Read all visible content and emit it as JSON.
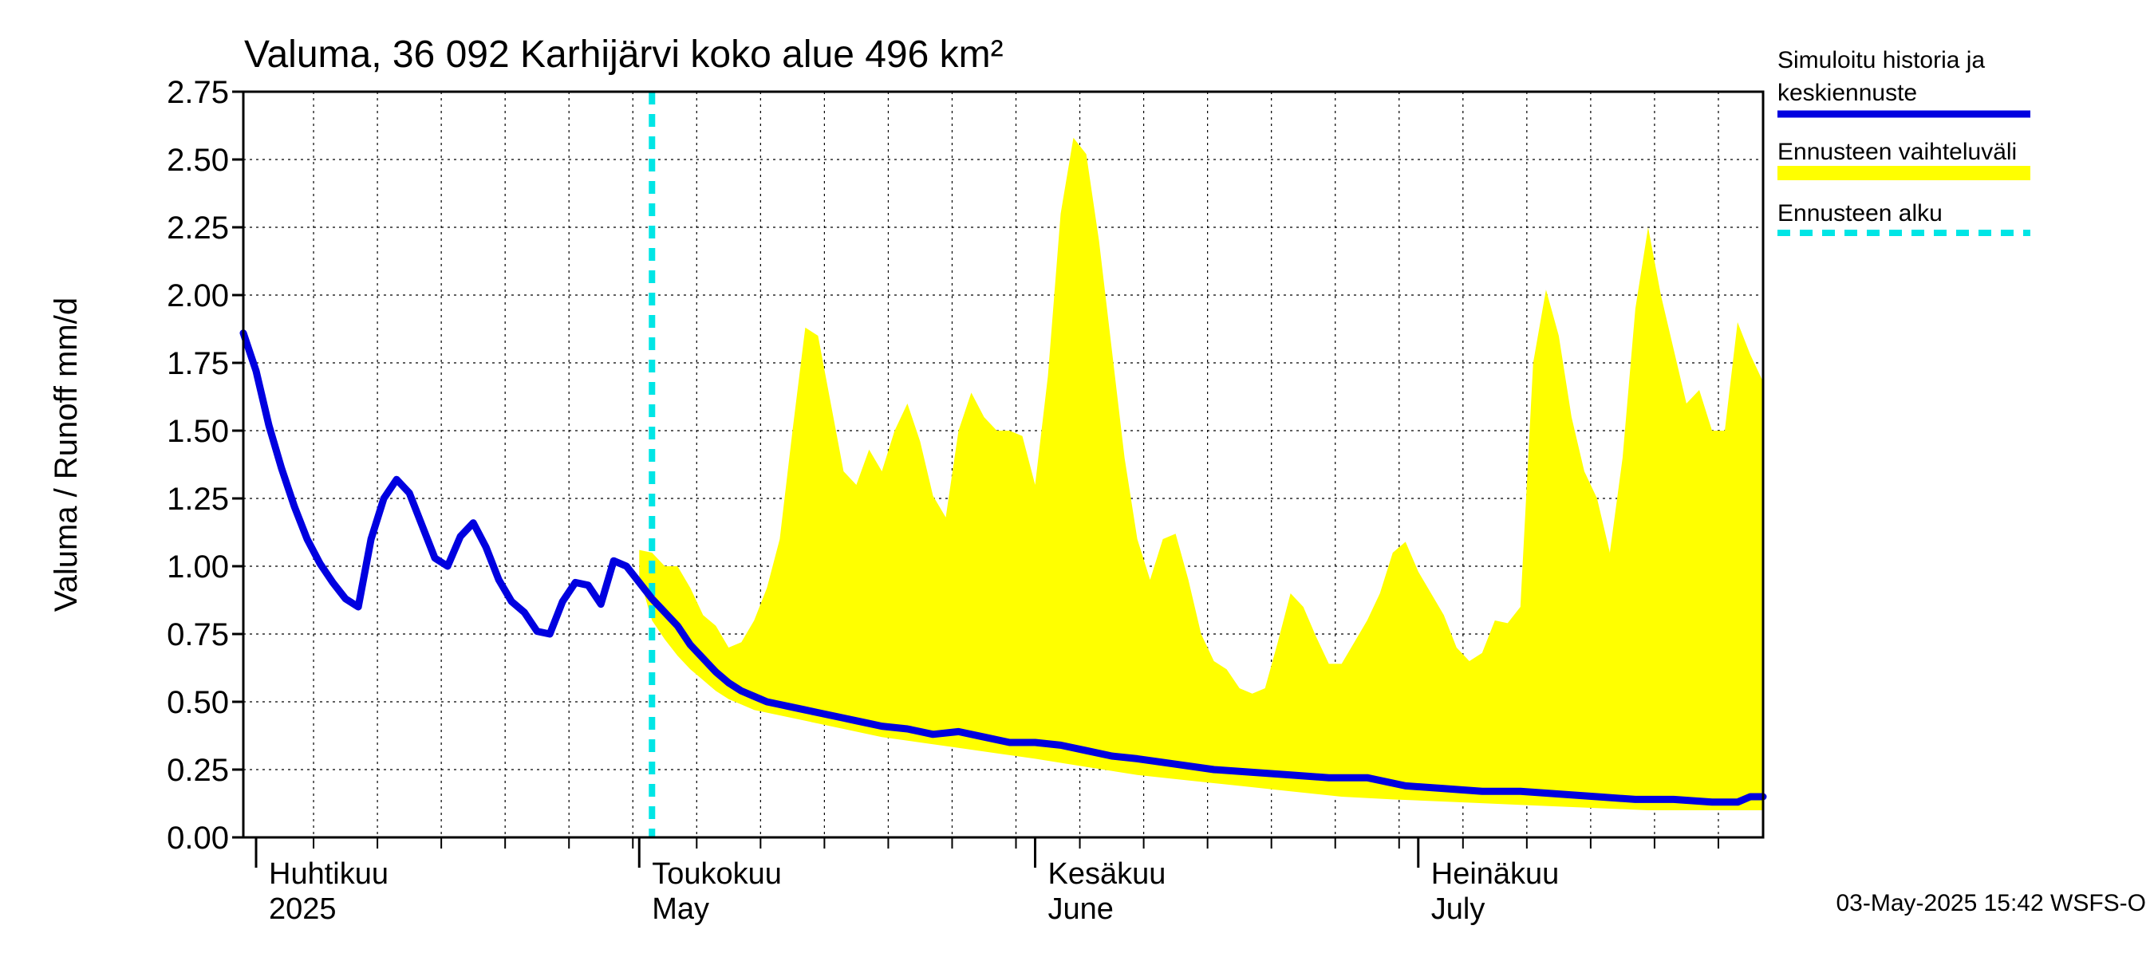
{
  "chart_data": {
    "type": "line",
    "title": "Valuma, 36 092 Karhijärvi koko alue 496 km²",
    "ylabel": "Valuma / Runoff     mm/d",
    "xlabel": "",
    "ylim": [
      0,
      2.75
    ],
    "yticks": [
      "0.00",
      "0.25",
      "0.50",
      "0.75",
      "1.00",
      "1.25",
      "1.50",
      "1.75",
      "2.00",
      "2.25",
      "2.50",
      "2.75"
    ],
    "x_range": [
      "2025-03-31",
      "2025-07-28"
    ],
    "grid": true,
    "legend_placement": "right",
    "forecast_start": "2025-05-02",
    "months": [
      {
        "date": "2025-04-01",
        "label": "Huhtikuu",
        "sublabel": "2025"
      },
      {
        "date": "2025-05-01",
        "label": "Toukokuu",
        "sublabel": "May"
      },
      {
        "date": "2025-06-01",
        "label": "Kesäkuu",
        "sublabel": "June"
      },
      {
        "date": "2025-07-01",
        "label": "Heinäkuu",
        "sublabel": "July"
      }
    ],
    "legend": [
      {
        "line1": "Simuloitu historia ja",
        "line2": "keskiennuste",
        "color": "#0000e0",
        "style": "solid"
      },
      {
        "line1": "Ennusteen vaihteluväli",
        "line2": "",
        "color": "#ffff00",
        "style": "band"
      },
      {
        "line1": "Ennusteen alku",
        "line2": "",
        "color": "#00e5e5",
        "style": "dashed"
      }
    ],
    "timestamp": "03-May-2025 15:42 WSFS-O",
    "series": [
      {
        "role": "simulated",
        "color": "#0000e0",
        "points": [
          [
            "2025-03-31",
            1.86
          ],
          [
            "2025-04-01",
            1.72
          ],
          [
            "2025-04-02",
            1.52
          ],
          [
            "2025-04-03",
            1.36
          ],
          [
            "2025-04-04",
            1.22
          ],
          [
            "2025-04-05",
            1.1
          ],
          [
            "2025-04-06",
            1.01
          ],
          [
            "2025-04-07",
            0.94
          ],
          [
            "2025-04-08",
            0.88
          ],
          [
            "2025-04-09",
            0.85
          ],
          [
            "2025-04-10",
            1.1
          ],
          [
            "2025-04-11",
            1.25
          ],
          [
            "2025-04-12",
            1.32
          ],
          [
            "2025-04-13",
            1.27
          ],
          [
            "2025-04-14",
            1.15
          ],
          [
            "2025-04-15",
            1.03
          ],
          [
            "2025-04-16",
            1.0
          ],
          [
            "2025-04-17",
            1.11
          ],
          [
            "2025-04-18",
            1.16
          ],
          [
            "2025-04-19",
            1.07
          ],
          [
            "2025-04-20",
            0.95
          ],
          [
            "2025-04-21",
            0.87
          ],
          [
            "2025-04-22",
            0.83
          ],
          [
            "2025-04-23",
            0.76
          ],
          [
            "2025-04-24",
            0.75
          ],
          [
            "2025-04-25",
            0.87
          ],
          [
            "2025-04-26",
            0.94
          ],
          [
            "2025-04-27",
            0.93
          ],
          [
            "2025-04-28",
            0.86
          ],
          [
            "2025-04-29",
            1.02
          ],
          [
            "2025-04-30",
            1.0
          ],
          [
            "2025-05-01",
            0.94
          ],
          [
            "2025-05-02",
            0.88
          ],
          [
            "2025-05-03",
            0.83
          ],
          [
            "2025-05-04",
            0.78
          ],
          [
            "2025-05-05",
            0.71
          ],
          [
            "2025-05-06",
            0.66
          ],
          [
            "2025-05-07",
            0.61
          ],
          [
            "2025-05-08",
            0.57
          ],
          [
            "2025-05-09",
            0.54
          ],
          [
            "2025-05-10",
            0.52
          ],
          [
            "2025-05-11",
            0.5
          ],
          [
            "2025-05-12",
            0.49
          ],
          [
            "2025-05-13",
            0.48
          ],
          [
            "2025-05-14",
            0.47
          ],
          [
            "2025-05-15",
            0.46
          ],
          [
            "2025-05-16",
            0.45
          ],
          [
            "2025-05-17",
            0.44
          ],
          [
            "2025-05-18",
            0.43
          ],
          [
            "2025-05-19",
            0.42
          ],
          [
            "2025-05-20",
            0.41
          ],
          [
            "2025-05-22",
            0.4
          ],
          [
            "2025-05-24",
            0.38
          ],
          [
            "2025-05-26",
            0.39
          ],
          [
            "2025-05-28",
            0.37
          ],
          [
            "2025-05-30",
            0.35
          ],
          [
            "2025-06-01",
            0.35
          ],
          [
            "2025-06-03",
            0.34
          ],
          [
            "2025-06-05",
            0.32
          ],
          [
            "2025-06-07",
            0.3
          ],
          [
            "2025-06-09",
            0.29
          ],
          [
            "2025-06-12",
            0.27
          ],
          [
            "2025-06-15",
            0.25
          ],
          [
            "2025-06-18",
            0.24
          ],
          [
            "2025-06-21",
            0.23
          ],
          [
            "2025-06-24",
            0.22
          ],
          [
            "2025-06-27",
            0.22
          ],
          [
            "2025-06-30",
            0.19
          ],
          [
            "2025-07-03",
            0.18
          ],
          [
            "2025-07-06",
            0.17
          ],
          [
            "2025-07-09",
            0.17
          ],
          [
            "2025-07-12",
            0.16
          ],
          [
            "2025-07-15",
            0.15
          ],
          [
            "2025-07-18",
            0.14
          ],
          [
            "2025-07-21",
            0.14
          ],
          [
            "2025-07-24",
            0.13
          ],
          [
            "2025-07-26",
            0.13
          ],
          [
            "2025-07-27",
            0.15
          ],
          [
            "2025-07-28",
            0.15
          ]
        ]
      }
    ],
    "band": {
      "color": "#ffff00",
      "upper": [
        [
          "2025-05-01",
          1.06
        ],
        [
          "2025-05-02",
          1.05
        ],
        [
          "2025-05-03",
          1.0
        ],
        [
          "2025-05-04",
          1.0
        ],
        [
          "2025-05-05",
          0.92
        ],
        [
          "2025-05-06",
          0.82
        ],
        [
          "2025-05-07",
          0.78
        ],
        [
          "2025-05-08",
          0.7
        ],
        [
          "2025-05-09",
          0.72
        ],
        [
          "2025-05-10",
          0.8
        ],
        [
          "2025-05-11",
          0.92
        ],
        [
          "2025-05-12",
          1.1
        ],
        [
          "2025-05-13",
          1.5
        ],
        [
          "2025-05-14",
          1.88
        ],
        [
          "2025-05-15",
          1.85
        ],
        [
          "2025-05-16",
          1.6
        ],
        [
          "2025-05-17",
          1.35
        ],
        [
          "2025-05-18",
          1.3
        ],
        [
          "2025-05-19",
          1.43
        ],
        [
          "2025-05-20",
          1.35
        ],
        [
          "2025-05-21",
          1.5
        ],
        [
          "2025-05-22",
          1.6
        ],
        [
          "2025-05-23",
          1.46
        ],
        [
          "2025-05-24",
          1.26
        ],
        [
          "2025-05-25",
          1.18
        ],
        [
          "2025-05-26",
          1.5
        ],
        [
          "2025-05-27",
          1.64
        ],
        [
          "2025-05-28",
          1.55
        ],
        [
          "2025-05-29",
          1.5
        ],
        [
          "2025-05-30",
          1.5
        ],
        [
          "2025-05-31",
          1.48
        ],
        [
          "2025-06-01",
          1.3
        ],
        [
          "2025-06-02",
          1.7
        ],
        [
          "2025-06-03",
          2.3
        ],
        [
          "2025-06-04",
          2.58
        ],
        [
          "2025-06-05",
          2.52
        ],
        [
          "2025-06-06",
          2.2
        ],
        [
          "2025-06-07",
          1.8
        ],
        [
          "2025-06-08",
          1.4
        ],
        [
          "2025-06-09",
          1.1
        ],
        [
          "2025-06-10",
          0.95
        ],
        [
          "2025-06-11",
          1.1
        ],
        [
          "2025-06-12",
          1.12
        ],
        [
          "2025-06-13",
          0.95
        ],
        [
          "2025-06-14",
          0.75
        ],
        [
          "2025-06-15",
          0.65
        ],
        [
          "2025-06-16",
          0.62
        ],
        [
          "2025-06-17",
          0.55
        ],
        [
          "2025-06-18",
          0.53
        ],
        [
          "2025-06-19",
          0.55
        ],
        [
          "2025-06-20",
          0.72
        ],
        [
          "2025-06-21",
          0.9
        ],
        [
          "2025-06-22",
          0.85
        ],
        [
          "2025-06-23",
          0.74
        ],
        [
          "2025-06-24",
          0.64
        ],
        [
          "2025-06-25",
          0.64
        ],
        [
          "2025-06-26",
          0.72
        ],
        [
          "2025-06-27",
          0.8
        ],
        [
          "2025-06-28",
          0.9
        ],
        [
          "2025-06-29",
          1.05
        ],
        [
          "2025-06-30",
          1.09
        ],
        [
          "2025-07-01",
          0.98
        ],
        [
          "2025-07-02",
          0.9
        ],
        [
          "2025-07-03",
          0.82
        ],
        [
          "2025-07-04",
          0.7
        ],
        [
          "2025-07-05",
          0.65
        ],
        [
          "2025-07-06",
          0.68
        ],
        [
          "2025-07-07",
          0.8
        ],
        [
          "2025-07-08",
          0.79
        ],
        [
          "2025-07-09",
          0.85
        ],
        [
          "2025-07-10",
          1.75
        ],
        [
          "2025-07-11",
          2.02
        ],
        [
          "2025-07-12",
          1.85
        ],
        [
          "2025-07-13",
          1.55
        ],
        [
          "2025-07-14",
          1.35
        ],
        [
          "2025-07-15",
          1.25
        ],
        [
          "2025-07-16",
          1.05
        ],
        [
          "2025-07-17",
          1.4
        ],
        [
          "2025-07-18",
          1.95
        ],
        [
          "2025-07-19",
          2.25
        ],
        [
          "2025-07-20",
          2.0
        ],
        [
          "2025-07-21",
          1.8
        ],
        [
          "2025-07-22",
          1.6
        ],
        [
          "2025-07-23",
          1.65
        ],
        [
          "2025-07-24",
          1.5
        ],
        [
          "2025-07-25",
          1.5
        ],
        [
          "2025-07-26",
          1.9
        ],
        [
          "2025-07-27",
          1.78
        ],
        [
          "2025-07-28",
          1.68
        ],
        [
          "2025-07-29",
          1.8
        ]
      ],
      "lower": [
        [
          "2025-05-01",
          0.96
        ],
        [
          "2025-05-02",
          0.8
        ],
        [
          "2025-05-03",
          0.73
        ],
        [
          "2025-05-04",
          0.67
        ],
        [
          "2025-05-05",
          0.62
        ],
        [
          "2025-05-06",
          0.58
        ],
        [
          "2025-05-07",
          0.54
        ],
        [
          "2025-05-08",
          0.51
        ],
        [
          "2025-05-09",
          0.49
        ],
        [
          "2025-05-10",
          0.47
        ],
        [
          "2025-05-12",
          0.45
        ],
        [
          "2025-05-14",
          0.43
        ],
        [
          "2025-05-17",
          0.4
        ],
        [
          "2025-05-20",
          0.37
        ],
        [
          "2025-05-23",
          0.35
        ],
        [
          "2025-05-26",
          0.33
        ],
        [
          "2025-05-29",
          0.31
        ],
        [
          "2025-06-01",
          0.29
        ],
        [
          "2025-06-05",
          0.26
        ],
        [
          "2025-06-09",
          0.23
        ],
        [
          "2025-06-13",
          0.21
        ],
        [
          "2025-06-17",
          0.19
        ],
        [
          "2025-06-21",
          0.17
        ],
        [
          "2025-06-25",
          0.15
        ],
        [
          "2025-06-29",
          0.14
        ],
        [
          "2025-07-04",
          0.13
        ],
        [
          "2025-07-09",
          0.12
        ],
        [
          "2025-07-14",
          0.11
        ],
        [
          "2025-07-19",
          0.1
        ],
        [
          "2025-07-24",
          0.1
        ],
        [
          "2025-07-29",
          0.1
        ]
      ]
    }
  }
}
